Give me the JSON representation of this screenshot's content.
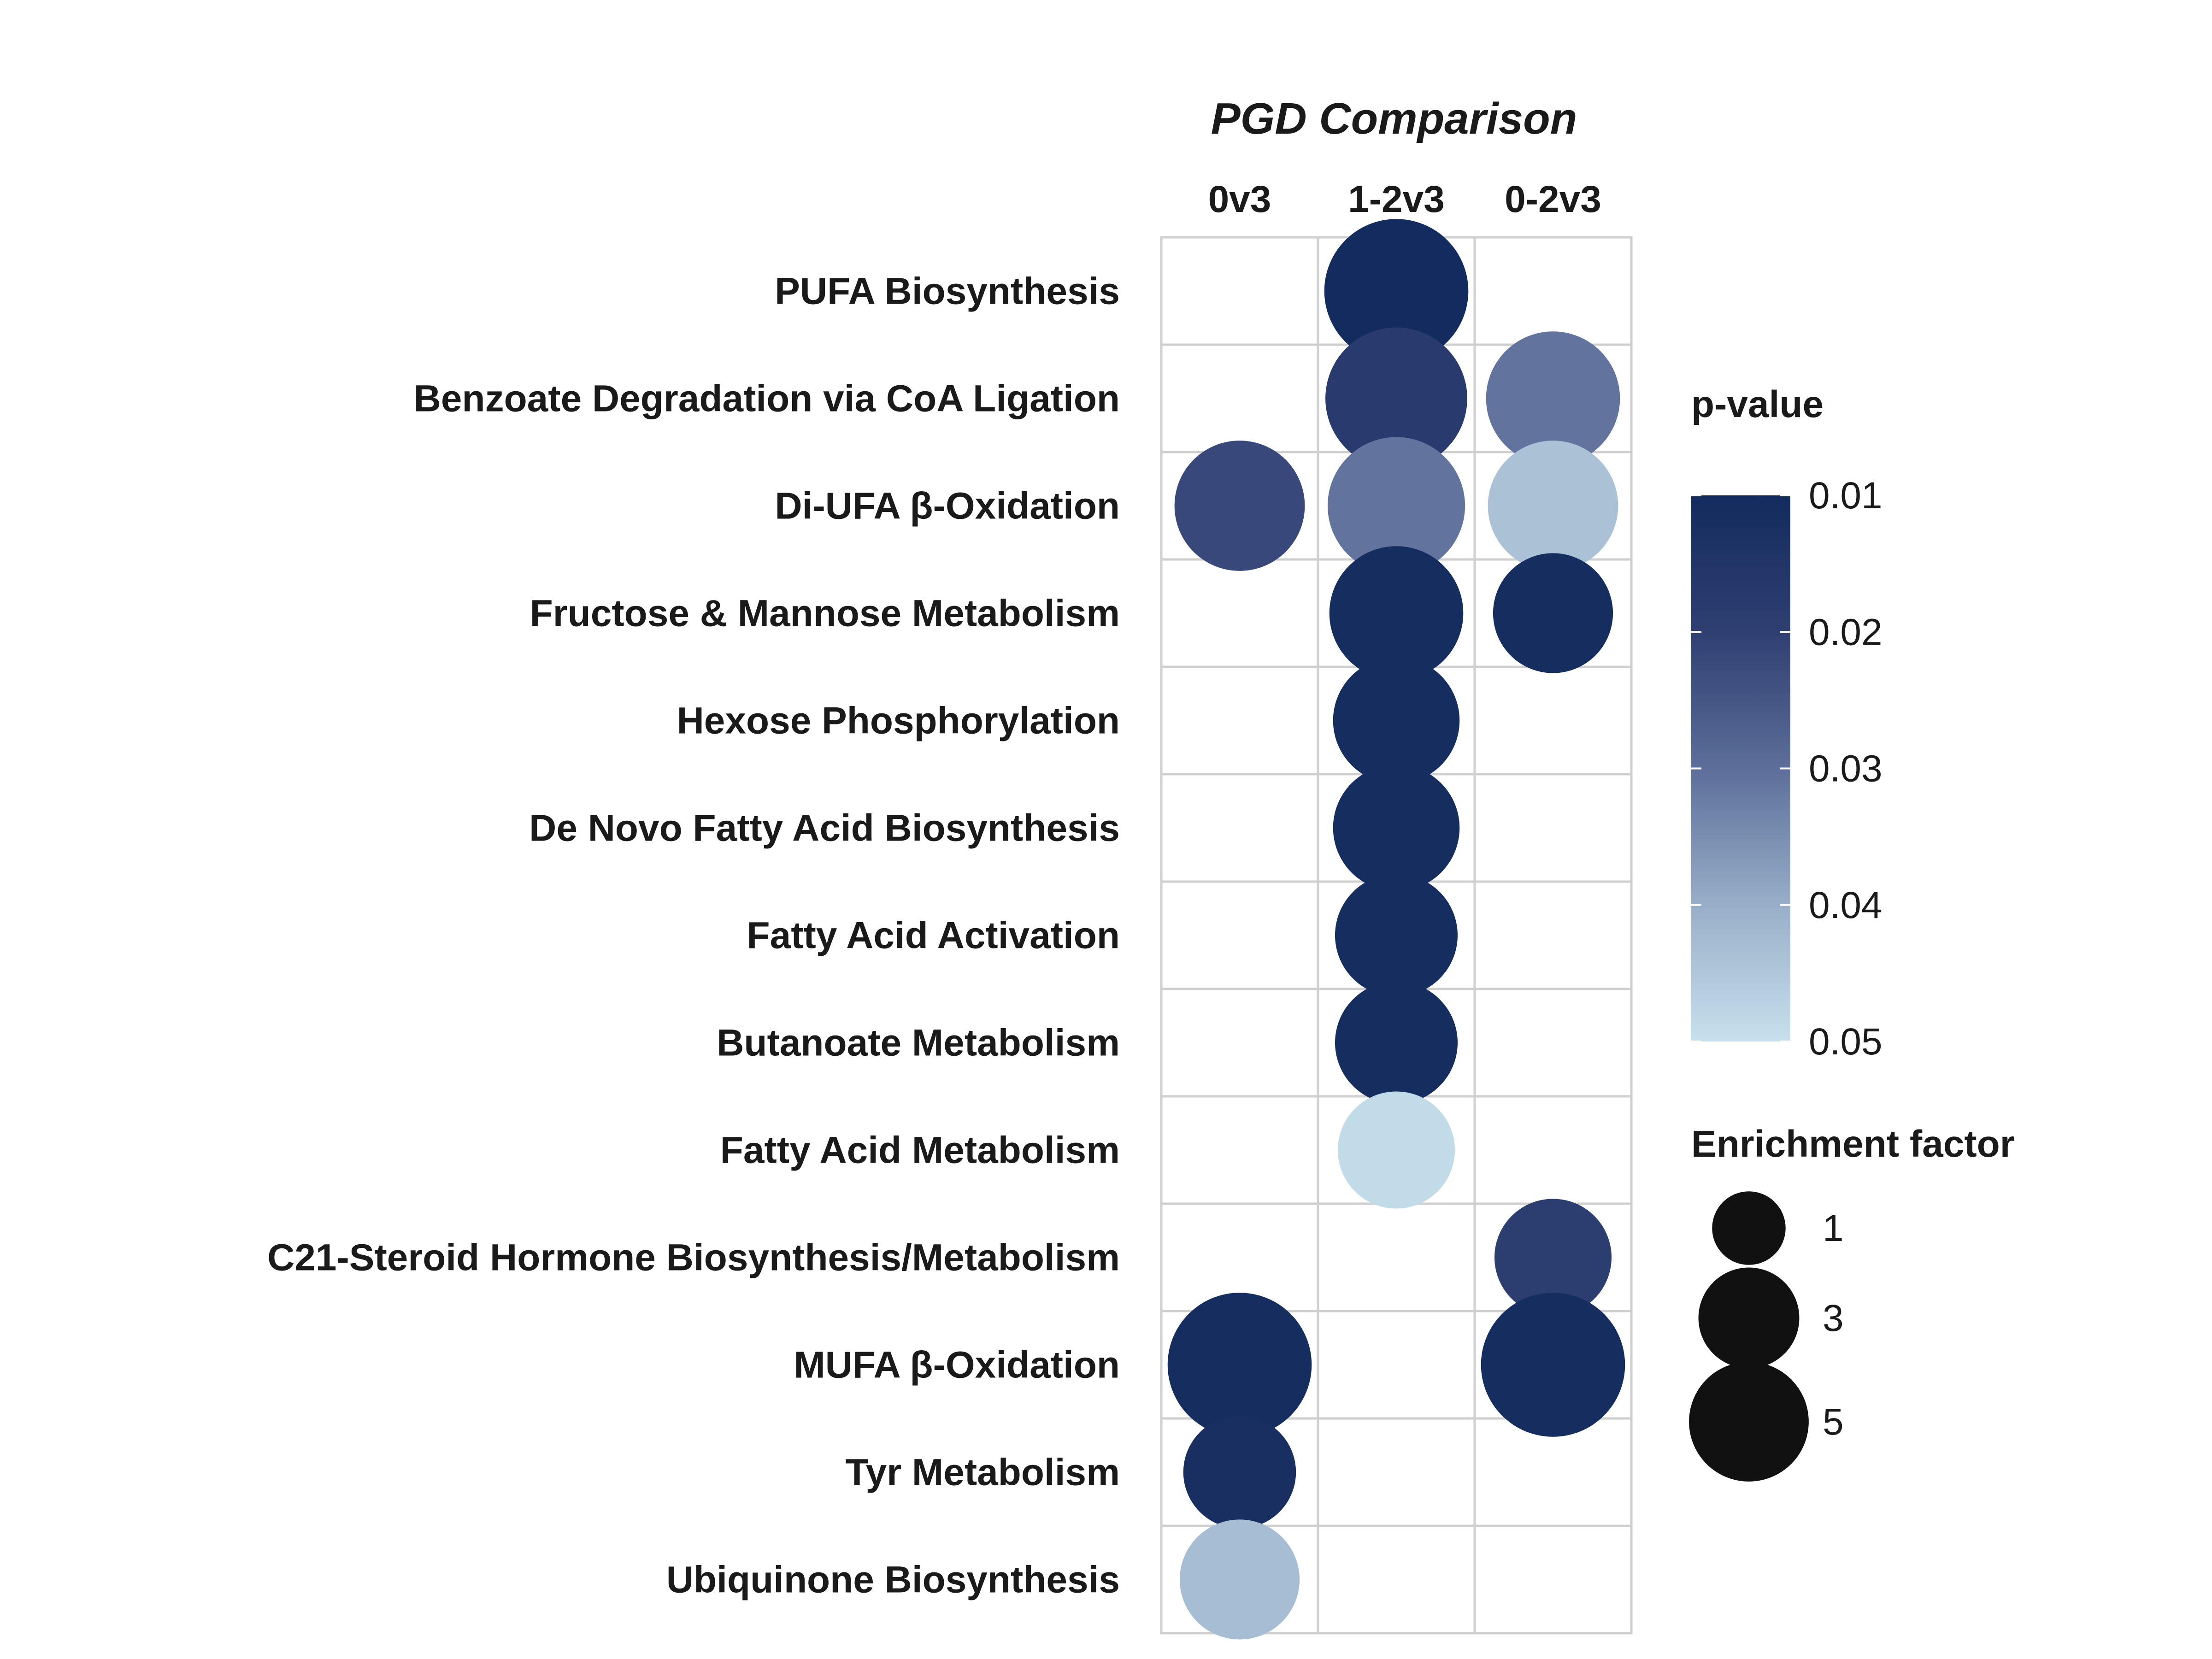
{
  "chart_data": {
    "type": "bubble-grid",
    "title": "PGD Comparison",
    "columns": [
      "0v3",
      "1-2v3",
      "0-2v3"
    ],
    "rows": [
      "PUFA Biosynthesis",
      "Benzoate Degradation via CoA Ligation",
      "Di-UFA β-Oxidation",
      "Fructose  &  Mannose Metabolism",
      "Hexose Phosphorylation",
      "De Novo Fatty Acid Biosynthesis",
      "Fatty Acid Activation",
      "Butanoate Metabolism",
      "Fatty Acid Metabolism",
      "C21-Steroid Hormone Biosynthesis/Metabolism",
      "MUFA β-Oxidation",
      "Tyr Metabolism",
      "Ubiquinone Biosynthesis"
    ],
    "points": [
      {
        "row": "PUFA Biosynthesis",
        "column": "1-2v3",
        "p_value": 0.01,
        "enrichment_factor": 5.0
      },
      {
        "row": "Benzoate Degradation via CoA Ligation",
        "column": "1-2v3",
        "p_value": 0.018,
        "enrichment_factor": 4.8
      },
      {
        "row": "Benzoate Degradation via CoA Ligation",
        "column": "0-2v3",
        "p_value": 0.031,
        "enrichment_factor": 4.1
      },
      {
        "row": "Di-UFA β-Oxidation",
        "column": "0v3",
        "p_value": 0.022,
        "enrichment_factor": 3.8
      },
      {
        "row": "Di-UFA β-Oxidation",
        "column": "1-2v3",
        "p_value": 0.031,
        "enrichment_factor": 4.4
      },
      {
        "row": "Di-UFA β-Oxidation",
        "column": "0-2v3",
        "p_value": 0.044,
        "enrichment_factor": 3.8
      },
      {
        "row": "Fructose  &  Mannose Metabolism",
        "column": "1-2v3",
        "p_value": 0.011,
        "enrichment_factor": 4.1
      },
      {
        "row": "Fructose  &  Mannose Metabolism",
        "column": "0-2v3",
        "p_value": 0.011,
        "enrichment_factor": 3.0
      },
      {
        "row": "Hexose Phosphorylation",
        "column": "1-2v3",
        "p_value": 0.011,
        "enrichment_factor": 3.5
      },
      {
        "row": "De Novo Fatty Acid Biosynthesis",
        "column": "1-2v3",
        "p_value": 0.011,
        "enrichment_factor": 3.5
      },
      {
        "row": "Fatty Acid Activation",
        "column": "1-2v3",
        "p_value": 0.011,
        "enrichment_factor": 3.2
      },
      {
        "row": "Butanoate Metabolism",
        "column": "1-2v3",
        "p_value": 0.011,
        "enrichment_factor": 3.2
      },
      {
        "row": "Fatty Acid Metabolism",
        "column": "1-2v3",
        "p_value": 0.049,
        "enrichment_factor": 2.8
      },
      {
        "row": "C21-Steroid Hormone Biosynthesis/Metabolism",
        "column": "0-2v3",
        "p_value": 0.019,
        "enrichment_factor": 2.8
      },
      {
        "row": "MUFA β-Oxidation",
        "column": "0v3",
        "p_value": 0.011,
        "enrichment_factor": 5.0
      },
      {
        "row": "MUFA β-Oxidation",
        "column": "0-2v3",
        "p_value": 0.011,
        "enrichment_factor": 5.0
      },
      {
        "row": "Tyr Metabolism",
        "column": "0v3",
        "p_value": 0.012,
        "enrichment_factor": 2.5
      },
      {
        "row": "Ubiquinone Biosynthesis",
        "column": "0v3",
        "p_value": 0.043,
        "enrichment_factor": 3.0
      }
    ],
    "color_legend": {
      "title": "p-value",
      "ticks": [
        "0.01",
        "0.02",
        "0.03",
        "0.04",
        "0.05"
      ],
      "range": [
        0.01,
        0.05
      ],
      "low_color": "#132b5e",
      "high_color": "#c7e0ec"
    },
    "size_legend": {
      "title": "Enrichment factor",
      "ticks": [
        "1",
        "3",
        "5"
      ],
      "values": [
        1,
        3,
        5
      ],
      "color": "#111111"
    },
    "grid": true
  }
}
